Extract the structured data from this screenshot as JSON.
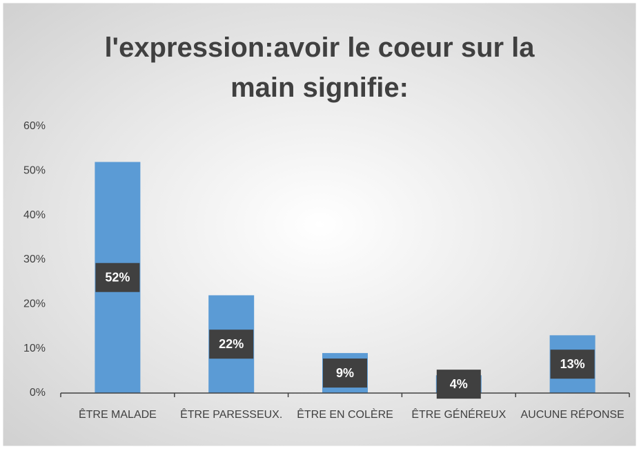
{
  "chart_data": {
    "type": "bar",
    "title": "l'expression:avoir le coeur sur la main signifie:",
    "categories": [
      "ÊTRE MALADE",
      "ÊTRE PARESSEUX.",
      "ÊTRE EN COLÈRE",
      "ÊTRE GÉNÉREUX",
      "AUCUNE RÉPONSE"
    ],
    "values": [
      52,
      22,
      9,
      4,
      13
    ],
    "value_labels": [
      "52%",
      "22%",
      "9%",
      "4%",
      "13%"
    ],
    "color": "#5b9bd5",
    "ylim": [
      0,
      60
    ],
    "yticks": [
      {
        "value": 0,
        "label": "0%"
      },
      {
        "value": 10,
        "label": "10%"
      },
      {
        "value": 20,
        "label": "20%"
      },
      {
        "value": 30,
        "label": "30%"
      },
      {
        "value": 40,
        "label": "40%"
      },
      {
        "value": 50,
        "label": "50%"
      },
      {
        "value": 60,
        "label": "60%"
      }
    ],
    "grid": false
  }
}
